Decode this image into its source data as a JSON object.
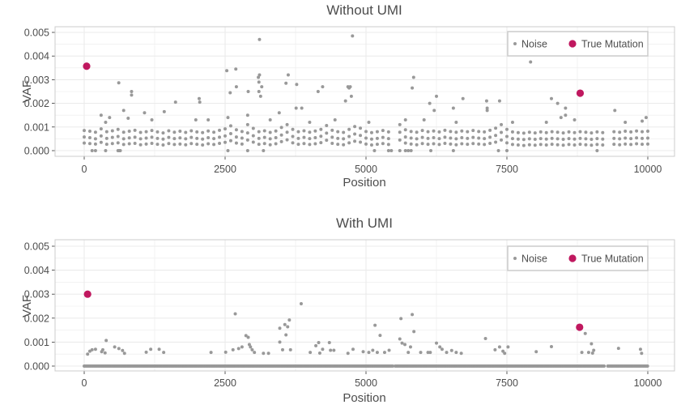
{
  "colors": {
    "noise": "#999999",
    "true_mutation": "#c0185f",
    "grid": "#ebebeb",
    "frame": "#cccccc"
  },
  "chart_data": [
    {
      "type": "scatter",
      "title": "Without UMI",
      "xlabel": "Position",
      "ylabel": "VAF",
      "xlim": [
        0,
        10000
      ],
      "ylim": [
        0,
        0.005
      ],
      "xticks": [
        "0",
        "2500",
        "5000",
        "7500",
        "10000"
      ],
      "yticks": [
        "0.000",
        "0.001",
        "0.002",
        "0.003",
        "0.004",
        "0.005"
      ],
      "grid": true,
      "legend": {
        "placement": "top-right",
        "entries": [
          "Noise",
          "True Mutation"
        ]
      },
      "noise_bands": {
        "x": [
          0,
          100,
          200,
          300,
          400,
          500,
          600,
          700,
          800,
          900,
          1000,
          1100,
          1200,
          1300,
          1400,
          1500,
          1600,
          1700,
          1800,
          1900,
          2000,
          2100,
          2200,
          2300,
          2400,
          2500,
          2600,
          2700,
          2800,
          2900,
          3000,
          3100,
          3200,
          3300,
          3400,
          3500,
          3600,
          3700,
          3800,
          3900,
          4000,
          4100,
          4200,
          4300,
          4400,
          4500,
          4600,
          4700,
          4800,
          4900,
          5000,
          5100,
          5200,
          5300,
          5400,
          5600,
          5700,
          5800,
          5900,
          6000,
          6100,
          6200,
          6300,
          6400,
          6500,
          6600,
          6700,
          6800,
          6900,
          7000,
          7100,
          7200,
          7300,
          7400,
          7500,
          7600,
          7700,
          7800,
          7900,
          8000,
          8100,
          8200,
          8300,
          8400,
          8500,
          8600,
          8700,
          8800,
          8900,
          9000,
          9100,
          9200,
          9400,
          9500,
          9600,
          9700,
          9800,
          9900,
          10000
        ],
        "low": [
          0.00032,
          0.0003,
          0.00028,
          0.00035,
          0.00027,
          0.0003,
          0.00033,
          0.00026,
          0.00029,
          0.00031,
          0.00025,
          0.00028,
          0.00031,
          0.00027,
          0.00024,
          0.0003,
          0.00026,
          0.00028,
          0.00025,
          0.0003,
          0.00027,
          0.00024,
          0.00029,
          0.00026,
          0.00031,
          0.00035,
          0.00042,
          0.00032,
          0.00028,
          0.00045,
          0.00036,
          0.00027,
          0.0003,
          0.00025,
          0.00029,
          0.00038,
          0.00046,
          0.00033,
          0.00027,
          0.0003,
          0.00026,
          0.00029,
          0.00034,
          0.00044,
          0.00031,
          0.00027,
          0.00025,
          0.00033,
          0.0004,
          0.00036,
          0.00028,
          0.00024,
          0.00027,
          0.0003,
          0.00026,
          0.00045,
          0.00032,
          0.00028,
          0.00025,
          0.0003,
          0.00027,
          0.00029,
          0.00026,
          0.00031,
          0.00028,
          0.00025,
          0.00029,
          0.00027,
          0.0003,
          0.00028,
          0.00026,
          0.00031,
          0.00036,
          0.00045,
          0.00033,
          0.00026,
          0.00024,
          0.00022,
          0.00025,
          0.00023,
          0.00026,
          0.00024,
          0.00027,
          0.00025,
          0.00023,
          0.00026,
          0.00024,
          0.00027,
          0.00025,
          0.00023,
          0.00026,
          0.00024,
          0.00027,
          0.00025,
          0.00028,
          0.00026,
          0.00029,
          0.00027,
          0.00028
        ],
        "mid": [
          0.00058,
          0.00055,
          0.0005,
          0.00062,
          0.00052,
          0.00056,
          0.0006,
          0.0005,
          0.00054,
          0.00057,
          0.0005,
          0.00053,
          0.00057,
          0.00052,
          0.00049,
          0.00056,
          0.00051,
          0.00054,
          0.0005,
          0.00056,
          0.00052,
          0.00049,
          0.00055,
          0.00051,
          0.00057,
          0.00062,
          0.00072,
          0.00058,
          0.00053,
          0.00075,
          0.00063,
          0.00052,
          0.00056,
          0.0005,
          0.00055,
          0.00066,
          0.00078,
          0.0006,
          0.00052,
          0.00056,
          0.00051,
          0.00055,
          0.00061,
          0.00074,
          0.00057,
          0.00052,
          0.0005,
          0.0006,
          0.0007,
          0.00064,
          0.00053,
          0.00049,
          0.00052,
          0.00056,
          0.00051,
          0.00078,
          0.00058,
          0.00053,
          0.0005,
          0.00056,
          0.00052,
          0.00055,
          0.00051,
          0.00057,
          0.00053,
          0.0005,
          0.00055,
          0.00052,
          0.00056,
          0.00053,
          0.00051,
          0.00057,
          0.00064,
          0.00077,
          0.0006,
          0.00051,
          0.00049,
          0.00047,
          0.0005,
          0.00048,
          0.00051,
          0.00049,
          0.00052,
          0.0005,
          0.00048,
          0.00051,
          0.00049,
          0.00052,
          0.0005,
          0.00048,
          0.00051,
          0.00049,
          0.00052,
          0.0005,
          0.00053,
          0.00051,
          0.00054,
          0.00052,
          0.00053
        ],
        "high": [
          0.00085,
          0.00082,
          0.00078,
          0.00092,
          0.0008,
          0.00084,
          0.0009,
          0.00078,
          0.00082,
          0.00086,
          0.00077,
          0.0008,
          0.00085,
          0.00079,
          0.00075,
          0.00084,
          0.00078,
          0.00082,
          0.00077,
          0.00084,
          0.00079,
          0.00076,
          0.00083,
          0.00078,
          0.00086,
          0.00092,
          0.00105,
          0.00088,
          0.00081,
          0.0011,
          0.00094,
          0.0008,
          0.00084,
          0.00077,
          0.00083,
          0.00098,
          0.0011,
          0.0009,
          0.0008,
          0.00084,
          0.00078,
          0.00083,
          0.0009,
          0.00106,
          0.00086,
          0.0008,
          0.00077,
          0.0009,
          0.00102,
          0.00095,
          0.00081,
          0.00076,
          0.0008,
          0.00085,
          0.00079,
          0.0011,
          0.00088,
          0.00081,
          0.00078,
          0.00085,
          0.0008,
          0.00083,
          0.00079,
          0.00086,
          0.00081,
          0.00078,
          0.00083,
          0.0008,
          0.00085,
          0.00081,
          0.00079,
          0.00086,
          0.00095,
          0.0011,
          0.0009,
          0.00079,
          0.00076,
          0.00074,
          0.00078,
          0.00075,
          0.00079,
          0.00076,
          0.0008,
          0.00078,
          0.00075,
          0.00079,
          0.00076,
          0.0008,
          0.00078,
          0.00075,
          0.00079,
          0.00076,
          0.0008,
          0.00078,
          0.00082,
          0.00079,
          0.00083,
          0.0008,
          0.00082
        ]
      },
      "noise_points": [
        [
          613,
          0.00287
        ],
        [
          840,
          0.0025
        ],
        [
          840,
          0.00235
        ],
        [
          700,
          0.0017
        ],
        [
          780,
          0.00137
        ],
        [
          1070,
          0.0016
        ],
        [
          1420,
          0.00165
        ],
        [
          1620,
          0.00205
        ],
        [
          2040,
          0.0022
        ],
        [
          2050,
          0.00205
        ],
        [
          2530,
          0.00338
        ],
        [
          2590,
          0.00245
        ],
        [
          2690,
          0.00345
        ],
        [
          2700,
          0.0027
        ],
        [
          2910,
          0.0025
        ],
        [
          3110,
          0.0047
        ],
        [
          3090,
          0.0031
        ],
        [
          3110,
          0.0032
        ],
        [
          3100,
          0.0029
        ],
        [
          3150,
          0.0027
        ],
        [
          3100,
          0.0025
        ],
        [
          3130,
          0.0023
        ],
        [
          3580,
          0.00285
        ],
        [
          3620,
          0.0032
        ],
        [
          3770,
          0.0028
        ],
        [
          3460,
          0.0016
        ],
        [
          3760,
          0.0018
        ],
        [
          3860,
          0.0018
        ],
        [
          4150,
          0.0025
        ],
        [
          4230,
          0.0027
        ],
        [
          4760,
          0.00485
        ],
        [
          4680,
          0.0027
        ],
        [
          4700,
          0.00265
        ],
        [
          4720,
          0.0027
        ],
        [
          4636,
          0.0021
        ],
        [
          4740,
          0.0023
        ],
        [
          5845,
          0.0031
        ],
        [
          5820,
          0.00265
        ],
        [
          6250,
          0.0023
        ],
        [
          6130,
          0.002
        ],
        [
          6210,
          0.0017
        ],
        [
          6550,
          0.0018
        ],
        [
          6720,
          0.0022
        ],
        [
          7140,
          0.0021
        ],
        [
          7150,
          0.0018
        ],
        [
          7150,
          0.0017
        ],
        [
          7370,
          0.0021
        ],
        [
          7920,
          0.00375
        ],
        [
          8290,
          0.0022
        ],
        [
          8400,
          0.002
        ],
        [
          8540,
          0.0018
        ],
        [
          8460,
          0.0014
        ],
        [
          8540,
          0.0015
        ],
        [
          9415,
          0.0017
        ],
        [
          9970,
          0.0014
        ],
        [
          9900,
          0.00125
        ],
        [
          300,
          0.0015
        ],
        [
          450,
          0.0014
        ],
        [
          380,
          0.0012
        ],
        [
          1200,
          0.0013
        ],
        [
          1980,
          0.0013
        ],
        [
          2200,
          0.0013
        ],
        [
          2550,
          0.0014
        ],
        [
          2900,
          0.0015
        ],
        [
          3300,
          0.0013
        ],
        [
          4000,
          0.0012
        ],
        [
          4450,
          0.0013
        ],
        [
          5050,
          0.0012
        ],
        [
          5700,
          0.0013
        ],
        [
          6030,
          0.0013
        ],
        [
          6600,
          0.0012
        ],
        [
          7600,
          0.0012
        ],
        [
          8200,
          0.0012
        ],
        [
          8700,
          0.0013
        ],
        [
          9600,
          0.0012
        ],
        [
          140,
          0
        ],
        [
          200,
          0
        ],
        [
          380,
          0
        ],
        [
          600,
          0
        ],
        [
          620,
          0
        ],
        [
          640,
          0
        ],
        [
          2550,
          0
        ],
        [
          2900,
          0
        ],
        [
          3180,
          0
        ],
        [
          5150,
          0
        ],
        [
          5400,
          0
        ],
        [
          5450,
          0
        ],
        [
          5600,
          0
        ],
        [
          5700,
          0
        ],
        [
          5750,
          0
        ],
        [
          5800,
          0
        ],
        [
          6150,
          0
        ],
        [
          6550,
          0
        ],
        [
          7350,
          0
        ],
        [
          7500,
          0
        ],
        [
          9100,
          0
        ]
      ],
      "true_mutations": [
        [
          43,
          0.00357
        ],
        [
          8800,
          0.00243
        ]
      ]
    },
    {
      "type": "scatter",
      "title": "With UMI",
      "xlabel": "Position",
      "ylabel": "VAF",
      "xlim": [
        0,
        10000
      ],
      "ylim": [
        0,
        0.005
      ],
      "xticks": [
        "0",
        "2500",
        "5000",
        "7500",
        "10000"
      ],
      "yticks": [
        "0.000",
        "0.001",
        "0.002",
        "0.003",
        "0.004",
        "0.005"
      ],
      "grid": true,
      "legend": {
        "placement": "top-right",
        "entries": [
          "Noise",
          "True Mutation"
        ]
      },
      "zero_baseline_ranges": [
        [
          0,
          5480
        ],
        [
          5520,
          9230
        ],
        [
          9290,
          10000
        ]
      ],
      "noise_points": [
        [
          60,
          0.0005
        ],
        [
          100,
          0.00062
        ],
        [
          140,
          0.00068
        ],
        [
          200,
          0.0007
        ],
        [
          330,
          0.00068
        ],
        [
          390,
          0.00107
        ],
        [
          370,
          0.00055
        ],
        [
          310,
          0.0006
        ],
        [
          540,
          0.0008
        ],
        [
          615,
          0.00073
        ],
        [
          680,
          0.00065
        ],
        [
          715,
          0.00053
        ],
        [
          1100,
          0.00058
        ],
        [
          1180,
          0.0007
        ],
        [
          1330,
          0.0007
        ],
        [
          1410,
          0.00057
        ],
        [
          2250,
          0.00057
        ],
        [
          2510,
          0.00058
        ],
        [
          2680,
          0.00218
        ],
        [
          2640,
          0.00068
        ],
        [
          2740,
          0.00073
        ],
        [
          2800,
          0.0008
        ],
        [
          2870,
          0.00127
        ],
        [
          2910,
          0.0012
        ],
        [
          2930,
          0.0009
        ],
        [
          2950,
          0.0008
        ],
        [
          2980,
          0.00068
        ],
        [
          3020,
          0.00057
        ],
        [
          3180,
          0.00053
        ],
        [
          3270,
          0.00053
        ],
        [
          3470,
          0.00158
        ],
        [
          3560,
          0.00173
        ],
        [
          3610,
          0.00164
        ],
        [
          3640,
          0.00192
        ],
        [
          3580,
          0.0013
        ],
        [
          3470,
          0.001
        ],
        [
          3520,
          0.00068
        ],
        [
          3660,
          0.00068
        ],
        [
          3850,
          0.0026
        ],
        [
          4010,
          0.00057
        ],
        [
          4110,
          0.00085
        ],
        [
          4160,
          0.00098
        ],
        [
          4230,
          0.0007
        ],
        [
          4180,
          0.00054
        ],
        [
          4350,
          0.00098
        ],
        [
          4370,
          0.00066
        ],
        [
          4430,
          0.00066
        ],
        [
          4680,
          0.00053
        ],
        [
          4770,
          0.0007
        ],
        [
          4950,
          0.0006
        ],
        [
          5050,
          0.00057
        ],
        [
          5120,
          0.00066
        ],
        [
          5160,
          0.0017
        ],
        [
          5250,
          0.00128
        ],
        [
          5200,
          0.00057
        ],
        [
          5330,
          0.00057
        ],
        [
          5410,
          0.00066
        ],
        [
          5600,
          0.00113
        ],
        [
          5620,
          0.00198
        ],
        [
          5640,
          0.00096
        ],
        [
          5690,
          0.0009
        ],
        [
          5750,
          0.00057
        ],
        [
          5820,
          0.00215
        ],
        [
          5850,
          0.00144
        ],
        [
          5790,
          0.0008
        ],
        [
          5970,
          0.00057
        ],
        [
          6100,
          0.00057
        ],
        [
          6140,
          0.00057
        ],
        [
          6250,
          0.00096
        ],
        [
          6310,
          0.0008
        ],
        [
          6350,
          0.0007
        ],
        [
          6430,
          0.00057
        ],
        [
          6520,
          0.00065
        ],
        [
          6600,
          0.00057
        ],
        [
          6690,
          0.00053
        ],
        [
          7120,
          0.00115
        ],
        [
          7290,
          0.00068
        ],
        [
          7370,
          0.0008
        ],
        [
          7430,
          0.00062
        ],
        [
          7460,
          0.00053
        ],
        [
          7520,
          0.0008
        ],
        [
          8020,
          0.0006
        ],
        [
          8290,
          0.00081
        ],
        [
          8830,
          0.00057
        ],
        [
          8890,
          0.00136
        ],
        [
          8950,
          0.00057
        ],
        [
          9000,
          0.00093
        ],
        [
          9040,
          0.00066
        ],
        [
          9020,
          0.00054
        ],
        [
          9480,
          0.00074
        ],
        [
          9870,
          0.0007
        ],
        [
          9890,
          0.00053
        ]
      ],
      "true_mutations": [
        [
          60,
          0.003
        ],
        [
          8790,
          0.00162
        ]
      ]
    }
  ]
}
